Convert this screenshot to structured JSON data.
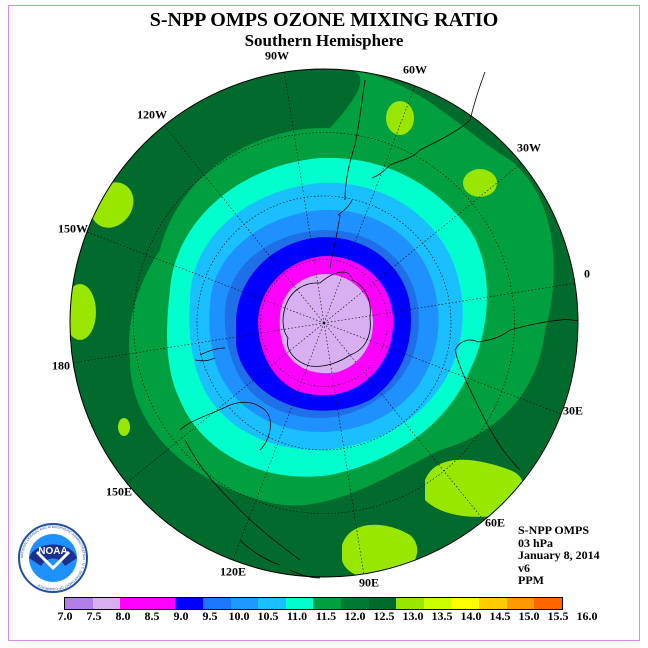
{
  "title": "S-NPP OMPS OZONE MIXING RATIO",
  "subtitle": "Southern Hemisphere",
  "longitude_labels": [
    "90W",
    "60W",
    "30W",
    "0",
    "30E",
    "60E",
    "90E",
    "120E",
    "150E",
    "180",
    "150W",
    "120W"
  ],
  "info": {
    "instrument": "S-NPP OMPS",
    "level": "03 hPa",
    "date": "January 8, 2014",
    "version": "v6",
    "units": "PPM"
  },
  "logo": {
    "text": "NOAA",
    "ring_text": "NATIONAL OCEANIC AND ATMOSPHERIC ADMINISTRATION · U.S. DEPARTMENT OF COMMERCE"
  },
  "colorbar": {
    "ticks": [
      "7.0",
      "7.5",
      "8.0",
      "8.5",
      "9.0",
      "9.5",
      "10.0",
      "10.5",
      "11.0",
      "11.5",
      "12.0",
      "12.5",
      "13.0",
      "13.5",
      "14.0",
      "14.5",
      "15.0",
      "15.5",
      "16.0"
    ],
    "colors": [
      "#b27fe8",
      "#d8b0f2",
      "#ff00ff",
      "#cc00dd",
      "#0000ff",
      "#1f6fe8",
      "#1e90ff",
      "#19bfff",
      "#00ffcc",
      "#00a040",
      "#007a33",
      "#006b2c",
      "#99e600",
      "#ccff00",
      "#ffff00",
      "#ffcc00",
      "#ff9900",
      "#ff6600",
      "#ff0000",
      "#cc0033",
      "#8b5a3c"
    ]
  },
  "map_colors": {
    "outer": "#006b2c",
    "green": "#00a040",
    "cyan": "#00ffcc",
    "light_blue": "#19bfff",
    "mid_blue": "#1e90ff",
    "blue2": "#1f6fe8",
    "deep_blue": "#0000ff",
    "magenta": "#ff00ff",
    "lavender": "#d8b0f2",
    "yellow_green": "#99e600"
  }
}
